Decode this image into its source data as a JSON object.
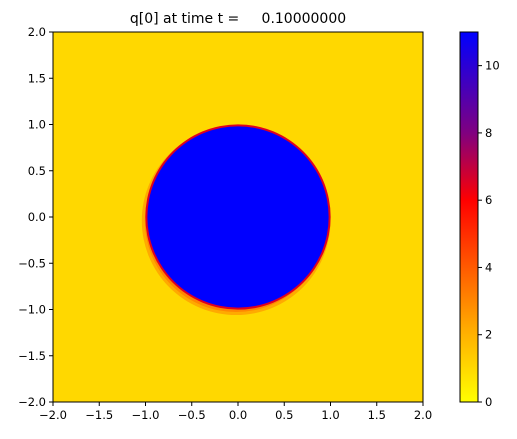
{
  "chart_data": {
    "type": "heatmap",
    "title": "q[0] at time t =     0.10000000",
    "xlabel": "",
    "ylabel": "",
    "xlim": [
      -2.0,
      2.0
    ],
    "ylim": [
      -2.0,
      2.0
    ],
    "x_ticks": [
      "−2.0",
      "−1.5",
      "−1.0",
      "−0.5",
      "0.0",
      "0.5",
      "1.0",
      "1.5",
      "2.0"
    ],
    "y_ticks": [
      "−2.0",
      "−1.5",
      "−1.0",
      "−0.5",
      "0.0",
      "0.5",
      "1.0",
      "1.5",
      "2.0"
    ],
    "x_tick_values": [
      -2.0,
      -1.5,
      -1.0,
      -0.5,
      0.0,
      0.5,
      1.0,
      1.5,
      2.0
    ],
    "y_tick_values": [
      -2.0,
      -1.5,
      -1.0,
      -0.5,
      0.0,
      0.5,
      1.0,
      1.5,
      2.0
    ],
    "field": {
      "background_value": 1.0,
      "disk_value": 11.0,
      "disk_center": [
        0.0,
        0.0
      ],
      "disk_radius": 0.98,
      "shock_offset": [
        -0.02,
        -0.04
      ],
      "shock_radius": 1.02,
      "shock_peak_value": 3.0
    },
    "colorbar": {
      "range": [
        0,
        11
      ],
      "ticks": [
        "0",
        "2",
        "4",
        "6",
        "8",
        "10"
      ],
      "tick_values": [
        0,
        2,
        4,
        6,
        8,
        10
      ],
      "colormap_stops": [
        {
          "value": 0.0,
          "color": "#ffff00"
        },
        {
          "value": 2.2,
          "color": "#ffaa00"
        },
        {
          "value": 4.5,
          "color": "#ff4400"
        },
        {
          "value": 6.0,
          "color": "#ff0000"
        },
        {
          "value": 8.0,
          "color": "#800080"
        },
        {
          "value": 11.0,
          "color": "#0000ff"
        }
      ]
    }
  }
}
